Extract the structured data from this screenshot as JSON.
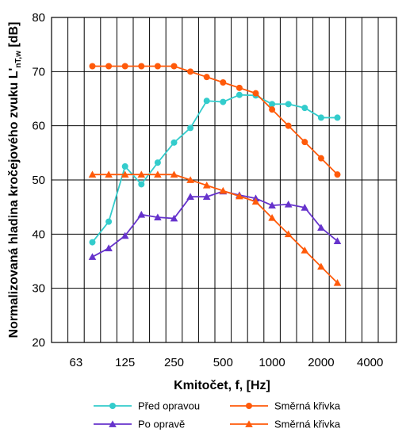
{
  "chart_data": {
    "type": "line",
    "xscale": "log",
    "x": [
      100,
      125,
      160,
      200,
      250,
      315,
      400,
      500,
      630,
      800,
      1000,
      1250,
      1600,
      2000,
      2500,
      3150
    ],
    "xtick_labels": [
      "63",
      "125",
      "250",
      "500",
      "1000",
      "2000",
      "4000"
    ],
    "ylim": [
      20,
      80
    ],
    "yticks": [
      20,
      30,
      40,
      50,
      60,
      70,
      80
    ],
    "xlabel": "Kmitočet, f, [Hz]",
    "ylabel": {
      "main": "Normalizovaná hladina kročejového zvuku L'",
      "sub": "nT,w",
      "unit": " [dB]"
    },
    "grid": true,
    "legend_position": "bottom",
    "series": [
      {
        "name": "Před opravou",
        "color": "#33CCCC",
        "marker": "circle",
        "values": [
          38.5,
          42.3,
          52.5,
          49.2,
          53.2,
          56.9,
          59.6,
          64.6,
          64.4,
          65.7,
          65.6,
          64.0,
          64.0,
          63.3,
          61.5,
          61.5
        ]
      },
      {
        "name": "Směrná křivka",
        "color": "#FF5A0A",
        "marker": "circle",
        "values": [
          71,
          71,
          71,
          71,
          71,
          71,
          70,
          69,
          68,
          67,
          66,
          63,
          60,
          57,
          54,
          51
        ]
      },
      {
        "name": "Po opravě",
        "color": "#6633CC",
        "marker": "triangle",
        "values": [
          35.8,
          37.4,
          39.7,
          43.6,
          43.1,
          42.9,
          46.9,
          46.9,
          47.9,
          47.2,
          46.6,
          45.3,
          45.5,
          44.9,
          41.2,
          38.7
        ]
      },
      {
        "name": "Směrná křivka",
        "color": "#FF5A0A",
        "marker": "triangle",
        "values": [
          51,
          51,
          51,
          51,
          51,
          51,
          50,
          49,
          48,
          47,
          46,
          43,
          40,
          37,
          34,
          31
        ]
      }
    ]
  }
}
